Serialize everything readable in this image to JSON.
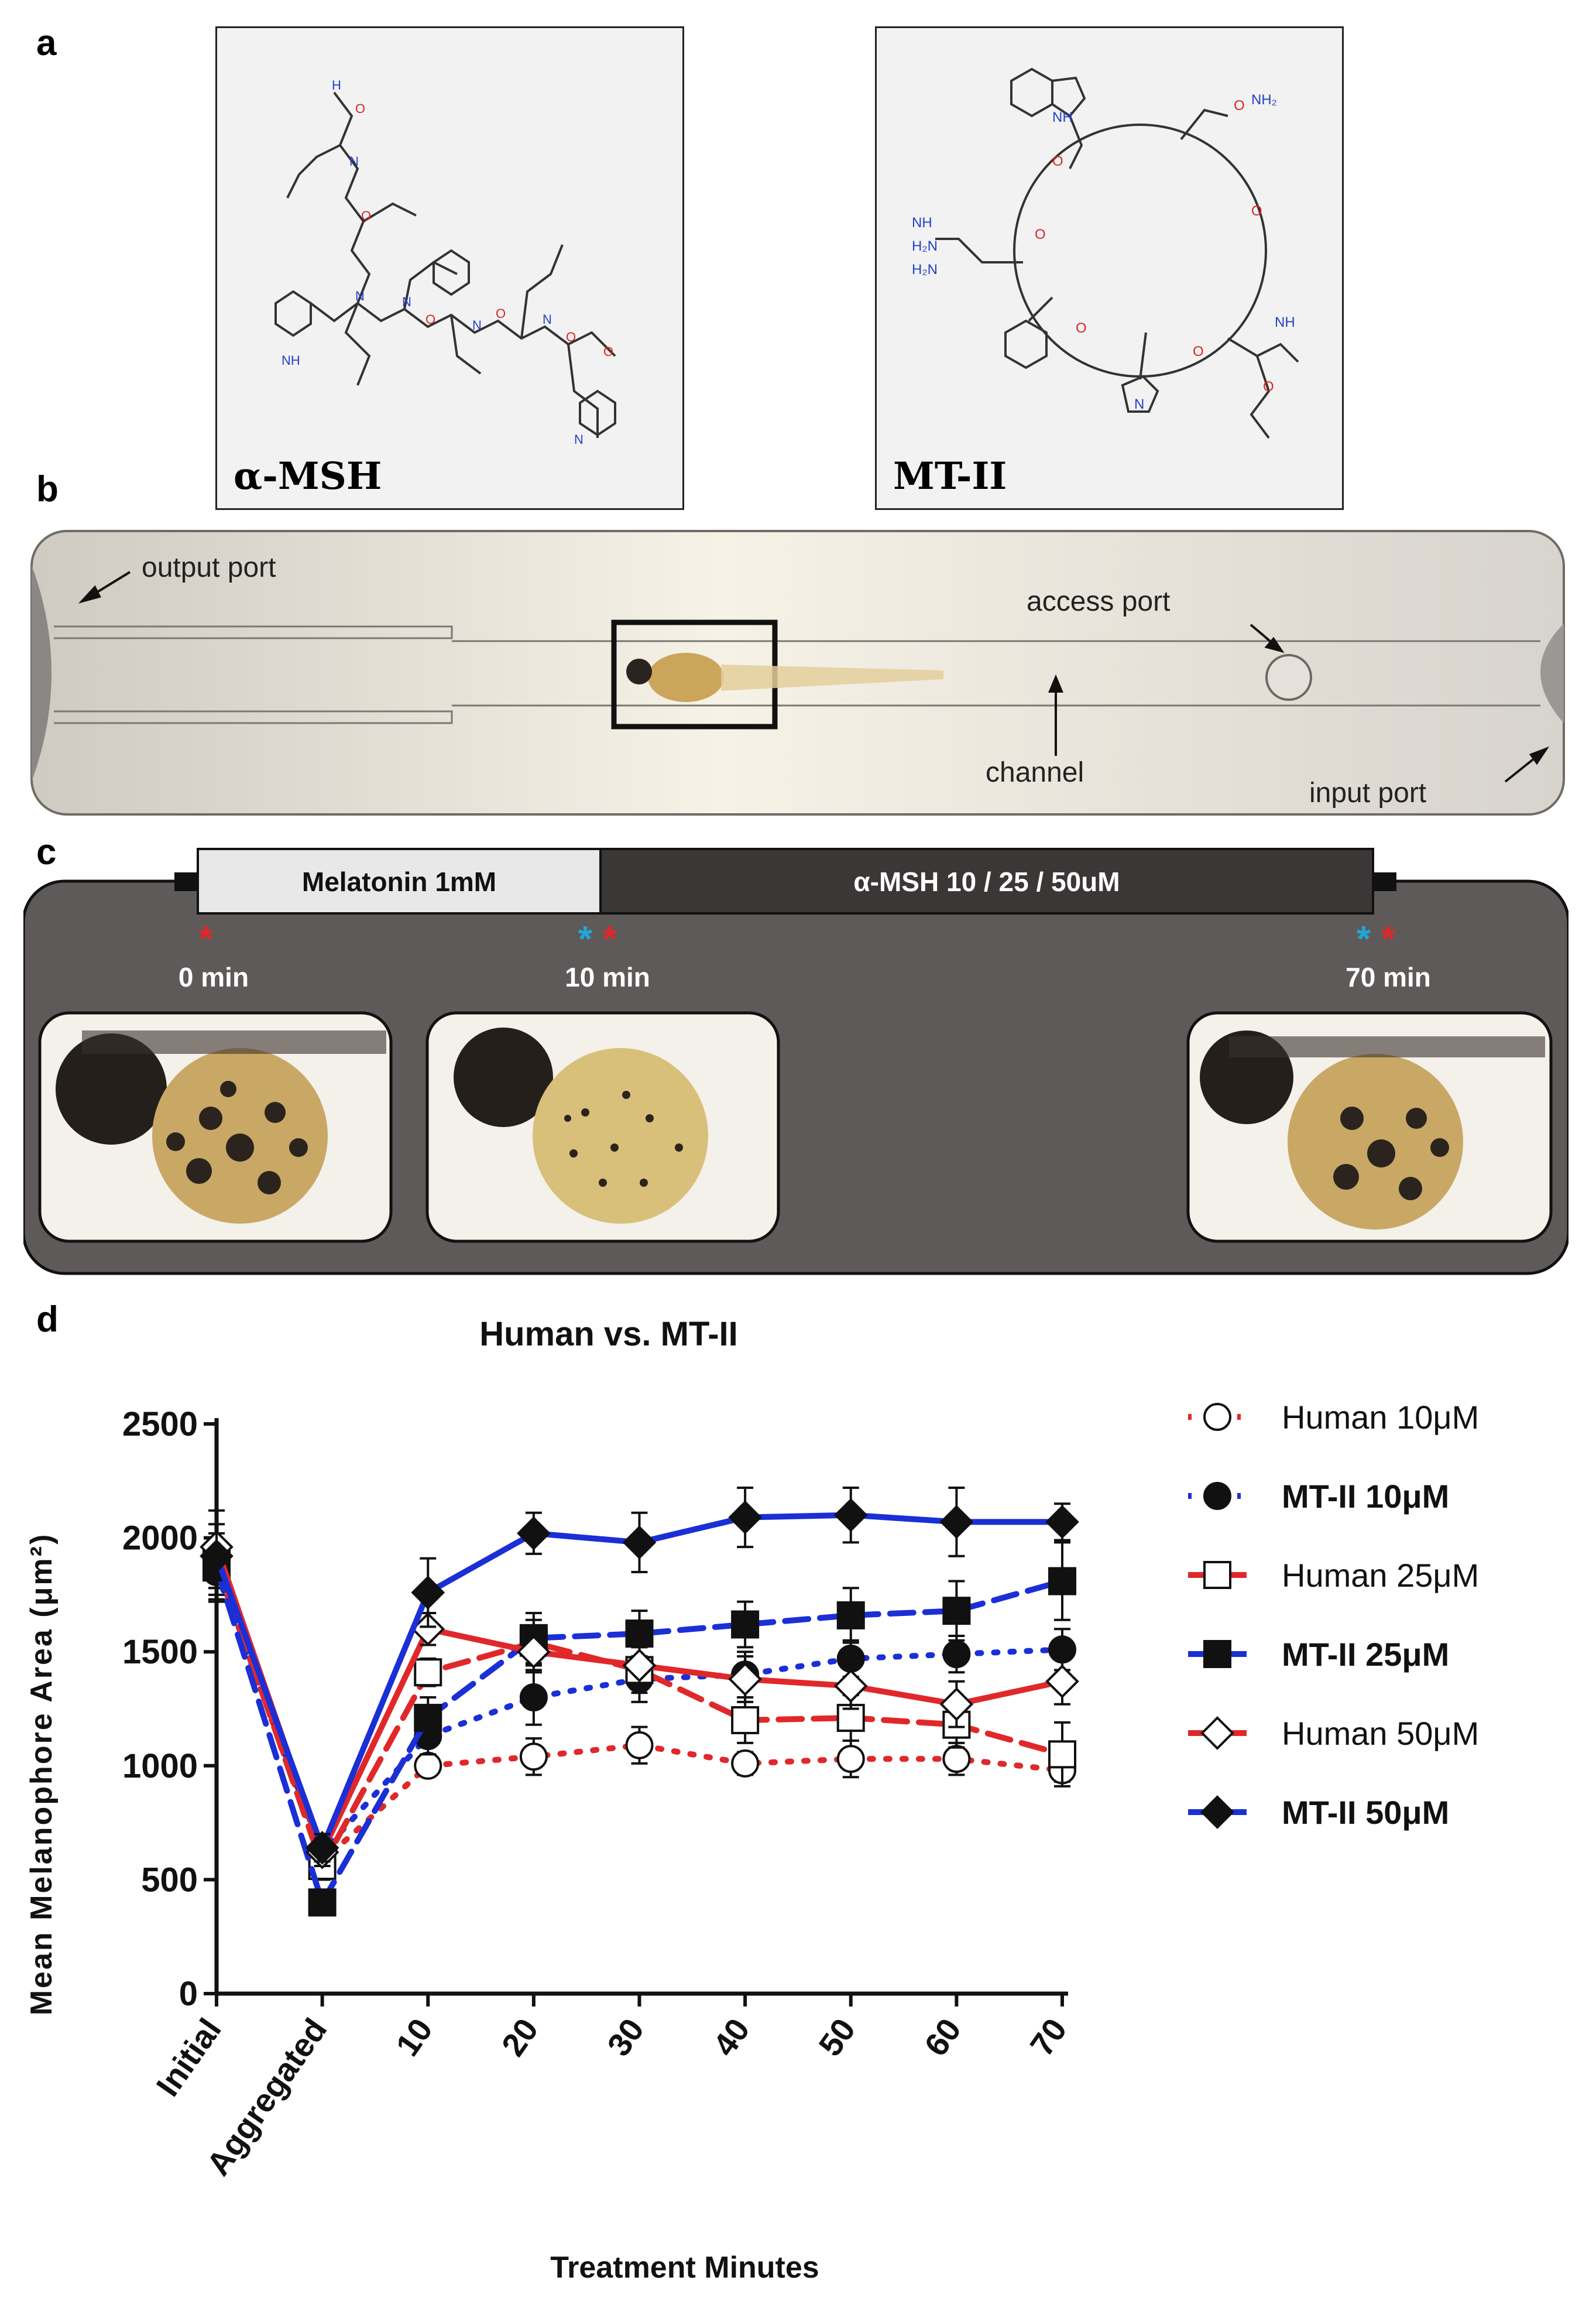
{
  "panels": {
    "a": "a",
    "b": "b",
    "c": "c",
    "d": "d"
  },
  "panel_a": {
    "left_label": "α-MSH",
    "right_label": "MT-II"
  },
  "panel_b": {
    "output_port": "output port",
    "access_port": "access port",
    "channel": "channel",
    "input_port": "input port"
  },
  "panel_c": {
    "timeline_left": "Melatonin 1mM",
    "timeline_right": "α-MSH 10 / 25 / 50uM",
    "time_0": "0 min",
    "time_10": "10 min",
    "time_70": "70 min",
    "marker": "*",
    "colors": {
      "red_star": "#e0282a",
      "blue_star": "#1fa8d8",
      "panel_bg": "#5e5a59",
      "timeline_dark": "#3b3737",
      "timeline_light": "#e8e8e8"
    }
  },
  "chart_data": {
    "type": "line",
    "title": "Human vs. MT-II",
    "xlabel": "Treatment Minutes",
    "ylabel": "Mean Melanophore Area (μm²)",
    "categories": [
      "Initial",
      "Aggregated",
      "10",
      "20",
      "30",
      "40",
      "50",
      "60",
      "70"
    ],
    "ylim": [
      0,
      2500
    ],
    "yticks": [
      "0",
      "500",
      "1000",
      "1500",
      "2000",
      "2500"
    ],
    "legend_position": "right",
    "series": [
      {
        "name": "Human 10μM",
        "color": "#e0282a",
        "dash": "dotted",
        "marker": "circle-open",
        "values": [
          1880,
          580,
          1000,
          1040,
          1090,
          1010,
          1030,
          1030,
          980
        ],
        "errors": [
          100,
          60,
          40,
          80,
          80,
          50,
          80,
          70,
          50
        ]
      },
      {
        "name": "MT-II 10μM",
        "color": "#1a2fd6",
        "dash": "dotted",
        "marker": "circle-filled",
        "values": [
          1850,
          620,
          1130,
          1300,
          1380,
          1400,
          1470,
          1490,
          1510
        ],
        "errors": [
          120,
          60,
          80,
          120,
          100,
          100,
          80,
          80,
          90
        ]
      },
      {
        "name": "Human 25μM",
        "color": "#e0282a",
        "dash": "dashed",
        "marker": "square-open",
        "values": [
          1900,
          560,
          1410,
          1540,
          1420,
          1200,
          1210,
          1180,
          1050
        ],
        "errors": [
          120,
          60,
          60,
          100,
          100,
          100,
          100,
          100,
          140
        ]
      },
      {
        "name": "MT-II 25μM",
        "color": "#1a2fd6",
        "dash": "dashed",
        "marker": "square-filled",
        "values": [
          1870,
          400,
          1210,
          1560,
          1580,
          1620,
          1660,
          1680,
          1810
        ],
        "errors": [
          120,
          50,
          90,
          110,
          100,
          100,
          120,
          130,
          170
        ]
      },
      {
        "name": "Human 50μM",
        "color": "#e0282a",
        "dash": "solid",
        "marker": "diamond-open",
        "values": [
          1960,
          620,
          1600,
          1500,
          1440,
          1380,
          1350,
          1270,
          1370
        ],
        "errors": [
          100,
          60,
          70,
          90,
          100,
          100,
          100,
          100,
          100
        ]
      },
      {
        "name": "MT-II 50μM",
        "color": "#1a2fd6",
        "dash": "solid",
        "marker": "diamond-filled",
        "values": [
          1920,
          640,
          1760,
          2020,
          1980,
          2090,
          2100,
          2070,
          2070
        ],
        "errors": [
          200,
          60,
          150,
          90,
          130,
          130,
          120,
          150,
          80
        ]
      }
    ],
    "legend_bold": [
      false,
      true,
      false,
      true,
      false,
      true
    ]
  }
}
